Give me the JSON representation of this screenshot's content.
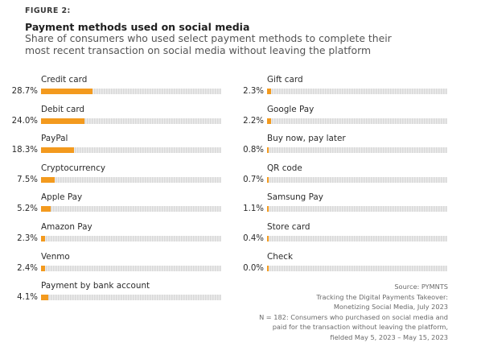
{
  "figure_label": "FIGURE 2:",
  "chart_data": {
    "type": "bar",
    "title": "Payment methods used on social media",
    "subtitle": "Share of consumers who used select payment methods to complete their most recent transaction on social media without leaving the platform",
    "unit": "%",
    "xlim": [
      0,
      100
    ],
    "bar_color": "#f39a1e",
    "track_color": "#e2e2e2",
    "columns": [
      {
        "items": [
          {
            "category": "Credit card",
            "value": 28.7,
            "display": "28.7%"
          },
          {
            "category": "Debit card",
            "value": 24.0,
            "display": "24.0%"
          },
          {
            "category": "PayPal",
            "value": 18.3,
            "display": "18.3%"
          },
          {
            "category": "Cryptocurrency",
            "value": 7.5,
            "display": "7.5%"
          },
          {
            "category": "Apple Pay",
            "value": 5.2,
            "display": "5.2%"
          },
          {
            "category": "Amazon Pay",
            "value": 2.3,
            "display": "2.3%"
          },
          {
            "category": "Venmo",
            "value": 2.4,
            "display": "2.4%"
          },
          {
            "category": "Payment by bank account",
            "value": 4.1,
            "display": "4.1%"
          }
        ]
      },
      {
        "items": [
          {
            "category": "Gift card",
            "value": 2.3,
            "display": "2.3%"
          },
          {
            "category": "Google Pay",
            "value": 2.2,
            "display": "2.2%"
          },
          {
            "category": "Buy now, pay later",
            "value": 0.8,
            "display": "0.8%"
          },
          {
            "category": "QR code",
            "value": 0.7,
            "display": "0.7%"
          },
          {
            "category": "Samsung Pay",
            "value": 1.1,
            "display": "1.1%"
          },
          {
            "category": "Store card",
            "value": 0.4,
            "display": "0.4%"
          },
          {
            "category": "Check",
            "value": 0.0,
            "display": "0.0%"
          }
        ]
      }
    ]
  },
  "source": {
    "lines": [
      "Source: PYMNTS",
      "Tracking the Digital Payments Takeover:",
      "Monetizing Social Media, July 2023",
      "N = 182: Consumers who purchased on social media and",
      "paid for the transaction without leaving the platform,",
      "fielded May 5, 2023 – May 15, 2023"
    ]
  }
}
